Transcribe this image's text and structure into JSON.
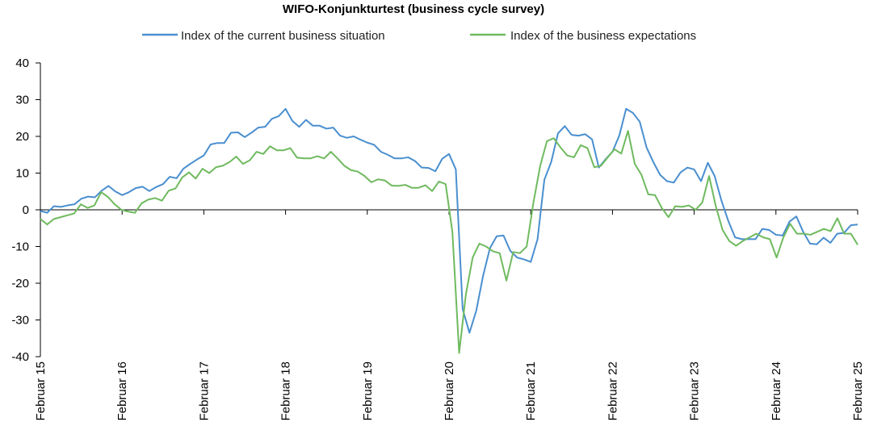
{
  "chart_data": {
    "type": "line",
    "title": "WIFO-Konjunkturtest (business cycle survey)",
    "xlabel": "",
    "ylabel": "",
    "ylim": [
      -40,
      40
    ],
    "yticks": [
      40,
      30,
      20,
      10,
      0,
      -10,
      -20,
      -30,
      -40
    ],
    "x_tick_labels": [
      "Februar 15",
      "Februar 16",
      "Februar 17",
      "Februar 18",
      "Februar 19",
      "Februar 20",
      "Februar 21",
      "Februar 22",
      "Februar 23",
      "Februar 24",
      "Februar 25"
    ],
    "grid": false,
    "legend_position": "top",
    "x_start": "2015-02",
    "x_end": "2025-02",
    "frequency": "monthly",
    "series": [
      {
        "name": "Index of the current business situation",
        "color": "#4a8fcf",
        "values": [
          -0.3,
          -0.8,
          1.0,
          0.8,
          1.2,
          1.5,
          3.0,
          3.6,
          3.4,
          5.2,
          6.5,
          5.0,
          4.0,
          4.8,
          5.9,
          6.3,
          5.1,
          6.2,
          7.0,
          9.0,
          8.6,
          11.2,
          12.5,
          13.7,
          14.8,
          17.8,
          18.2,
          18.2,
          21.0,
          21.1,
          19.8,
          21.0,
          22.4,
          22.6,
          24.8,
          25.5,
          27.5,
          24.2,
          22.6,
          24.5,
          22.9,
          22.9,
          22.1,
          22.4,
          20.2,
          19.6,
          20.0,
          19.1,
          18.3,
          17.7,
          15.8,
          15.0,
          14.0,
          14.0,
          14.3,
          13.3,
          11.5,
          11.4,
          10.5,
          13.9,
          15.2,
          11.0,
          -27.0,
          -33.5,
          -27.5,
          -18.0,
          -10.5,
          -7.2,
          -7.0,
          -11.2,
          -13.0,
          -13.5,
          -14.2,
          -8.0,
          8.2,
          13.0,
          20.8,
          22.8,
          20.4,
          20.2,
          20.6,
          19.2,
          11.5,
          13.8,
          15.8,
          20.2,
          27.5,
          26.4,
          24.0,
          17.0,
          13.0,
          9.5,
          7.8,
          7.4,
          10.2,
          11.5,
          11.0,
          7.8,
          12.8,
          9.2,
          2.5,
          -3.0,
          -7.5,
          -8.0,
          -8.0,
          -8.0,
          -5.2,
          -5.5,
          -6.8,
          -7.0,
          -3.2,
          -1.8,
          -6.0,
          -9.2,
          -9.4,
          -7.6,
          -9.0,
          -6.5,
          -6.3,
          -4.2,
          -4.0
        ]
      },
      {
        "name": "Index of the business expectations",
        "color": "#6fba5f",
        "values": [
          -2.5,
          -4.0,
          -2.5,
          -2.0,
          -1.5,
          -1.0,
          1.5,
          0.5,
          1.2,
          4.8,
          3.5,
          1.5,
          0.0,
          -0.5,
          -0.8,
          1.8,
          2.8,
          3.2,
          2.5,
          5.2,
          5.8,
          8.8,
          10.2,
          8.5,
          11.2,
          10.0,
          11.6,
          12.0,
          13.0,
          14.5,
          12.5,
          13.5,
          15.8,
          15.2,
          17.3,
          16.2,
          16.2,
          16.8,
          14.2,
          14.0,
          14.0,
          14.6,
          14.0,
          15.8,
          14.0,
          12.0,
          10.8,
          10.4,
          9.2,
          7.5,
          8.3,
          8.0,
          6.6,
          6.5,
          6.8,
          6.0,
          6.0,
          6.7,
          5.1,
          7.7,
          7.0,
          -6.0,
          -39.0,
          -23.0,
          -13.0,
          -9.2,
          -10.0,
          -11.3,
          -11.8,
          -19.3,
          -11.5,
          -11.8,
          -10.0,
          2.0,
          12.0,
          18.7,
          19.5,
          17.0,
          14.8,
          14.3,
          17.6,
          16.8,
          11.6,
          12.0,
          14.3,
          16.5,
          15.3,
          21.5,
          12.5,
          9.5,
          4.2,
          4.0,
          0.5,
          -2.0,
          1.0,
          0.8,
          1.2,
          0.0,
          2.0,
          9.2,
          1.0,
          -5.5,
          -8.5,
          -9.8,
          -8.5,
          -7.5,
          -6.5,
          -7.5,
          -8.0,
          -13.0,
          -7.5,
          -3.8,
          -6.5,
          -6.5,
          -6.8,
          -6.0,
          -5.2,
          -5.8,
          -2.3,
          -6.5,
          -6.5,
          -9.5
        ]
      }
    ]
  }
}
